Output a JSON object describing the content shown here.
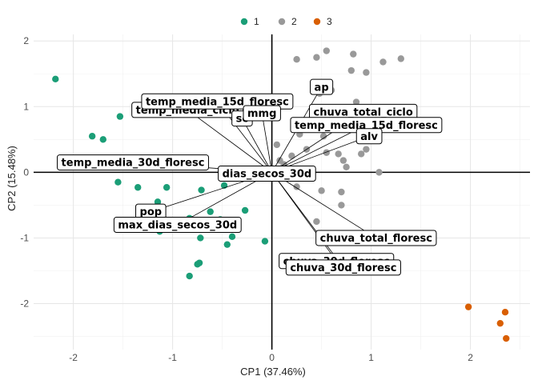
{
  "chart_data": {
    "type": "scatter",
    "title": "",
    "xlabel": "CP1 (37.46%)",
    "ylabel": "CP2 (15.48%)",
    "xlim": [
      -2.4,
      2.6
    ],
    "ylim": [
      -2.7,
      2.1
    ],
    "xticks": [
      -2,
      -1,
      0,
      1,
      2
    ],
    "yticks": [
      -2,
      -1,
      0,
      1,
      2
    ],
    "grid": true,
    "legend": {
      "position": "top",
      "title": "",
      "entries": [
        "1",
        "2",
        "3"
      ]
    },
    "colors": {
      "1": "#1b9e77",
      "2": "#999999",
      "3": "#d95f02"
    },
    "series": [
      {
        "name": "1",
        "points": [
          [
            -2.18,
            1.42
          ],
          [
            -1.53,
            0.85
          ],
          [
            -1.81,
            0.55
          ],
          [
            -1.7,
            0.5
          ],
          [
            -1.6,
            0.08
          ],
          [
            -1.55,
            -0.15
          ],
          [
            -1.35,
            -0.23
          ],
          [
            -1.06,
            -0.23
          ],
          [
            -1.15,
            -0.45
          ],
          [
            -1.13,
            -0.9
          ],
          [
            -0.93,
            -0.8
          ],
          [
            -0.83,
            -0.7
          ],
          [
            -0.62,
            -0.6
          ],
          [
            -0.71,
            -0.27
          ],
          [
            -0.48,
            -0.2
          ],
          [
            -0.72,
            -1.0
          ],
          [
            -0.75,
            -1.4
          ],
          [
            -0.73,
            -1.38
          ],
          [
            -0.83,
            -1.58
          ],
          [
            -0.52,
            -0.72
          ],
          [
            -0.45,
            -0.85
          ],
          [
            -0.4,
            -0.98
          ],
          [
            -0.45,
            -1.1
          ],
          [
            -0.27,
            -0.58
          ],
          [
            -0.07,
            -1.05
          ]
        ]
      },
      {
        "name": "2",
        "points": [
          [
            0.45,
            1.75
          ],
          [
            0.55,
            1.85
          ],
          [
            0.25,
            1.72
          ],
          [
            0.82,
            1.8
          ],
          [
            1.12,
            1.68
          ],
          [
            1.3,
            1.73
          ],
          [
            0.8,
            1.55
          ],
          [
            0.95,
            1.52
          ],
          [
            0.6,
            1.25
          ],
          [
            0.48,
            1.2
          ],
          [
            0.85,
            1.07
          ],
          [
            0.62,
            0.8
          ],
          [
            0.72,
            0.7
          ],
          [
            0.95,
            0.35
          ],
          [
            0.9,
            0.28
          ],
          [
            0.28,
            0.58
          ],
          [
            0.05,
            0.42
          ],
          [
            0.52,
            0.55
          ],
          [
            0.35,
            0.35
          ],
          [
            0.2,
            0.25
          ],
          [
            0.08,
            0.18
          ],
          [
            0.12,
            0.12
          ],
          [
            0.4,
            0.05
          ],
          [
            0.55,
            0.3
          ],
          [
            0.67,
            0.28
          ],
          [
            0.72,
            0.18
          ],
          [
            0.75,
            0.08
          ],
          [
            0.3,
            -0.08
          ],
          [
            0.5,
            -0.28
          ],
          [
            1.08,
            0.0
          ],
          [
            0.7,
            -0.3
          ],
          [
            0.25,
            -0.22
          ],
          [
            0.45,
            -0.75
          ],
          [
            0.7,
            -0.5
          ]
        ]
      },
      {
        "name": "3",
        "points": [
          [
            1.98,
            -2.05
          ],
          [
            2.35,
            -2.13
          ],
          [
            2.3,
            -2.3
          ],
          [
            2.36,
            -2.53
          ]
        ]
      }
    ],
    "loadings": [
      {
        "label": "temp_media_30d_floresc",
        "x": -1.4,
        "y": 0.15
      },
      {
        "label": "temp_media_ciclo",
        "x": -0.85,
        "y": 0.95
      },
      {
        "label": "temp_media_15d_floresc_behind",
        "x": -0.55,
        "y": 1.08
      },
      {
        "label": "sc",
        "x": -0.3,
        "y": 0.82
      },
      {
        "label": "mmg",
        "x": -0.1,
        "y": 0.9
      },
      {
        "label": "ap",
        "x": 0.5,
        "y": 1.3
      },
      {
        "label": "chuva_total_ciclo",
        "x": 0.92,
        "y": 0.92
      },
      {
        "label": "temp_media_15d_floresc",
        "x": 0.95,
        "y": 0.72
      },
      {
        "label": "alv",
        "x": 0.98,
        "y": 0.55
      },
      {
        "label": "dias_secos_30d",
        "x": -0.05,
        "y": -0.02
      },
      {
        "label": "pop",
        "x": -1.22,
        "y": -0.6
      },
      {
        "label": "max_dias_secos_30d",
        "x": -0.95,
        "y": -0.8
      },
      {
        "label": "chuva_total_floresc",
        "x": 1.05,
        "y": -1.0
      },
      {
        "label": "chuva_30d_floresc",
        "x": 0.65,
        "y": -1.35
      },
      {
        "label": "chuva_30d_floresc_behind",
        "x": 0.72,
        "y": -1.45
      }
    ],
    "label_text": {
      "temp_media_30d_floresc": "temp_media_30d_floresc",
      "temp_media_ciclo": "temp_media_ciclo",
      "temp_media_15d_floresc_behind": "temp_media_15d_floresc",
      "sc": "sc",
      "mmg": "mmg",
      "ap": "ap",
      "chuva_total_ciclo": "chuva_total_ciclo",
      "temp_media_15d_floresc": "temp_media_15d_floresc",
      "alv": "alv",
      "dias_secos_30d": "dias_secos_30d",
      "pop": "pop",
      "max_dias_secos_30d": "max_dias_secos_30d",
      "chuva_total_floresc": "chuva_total_floresc",
      "chuva_30d_floresc": "chuva_30d_floresc",
      "chuva_30d_floresc_behind": "chuva_30d_floresc"
    }
  }
}
